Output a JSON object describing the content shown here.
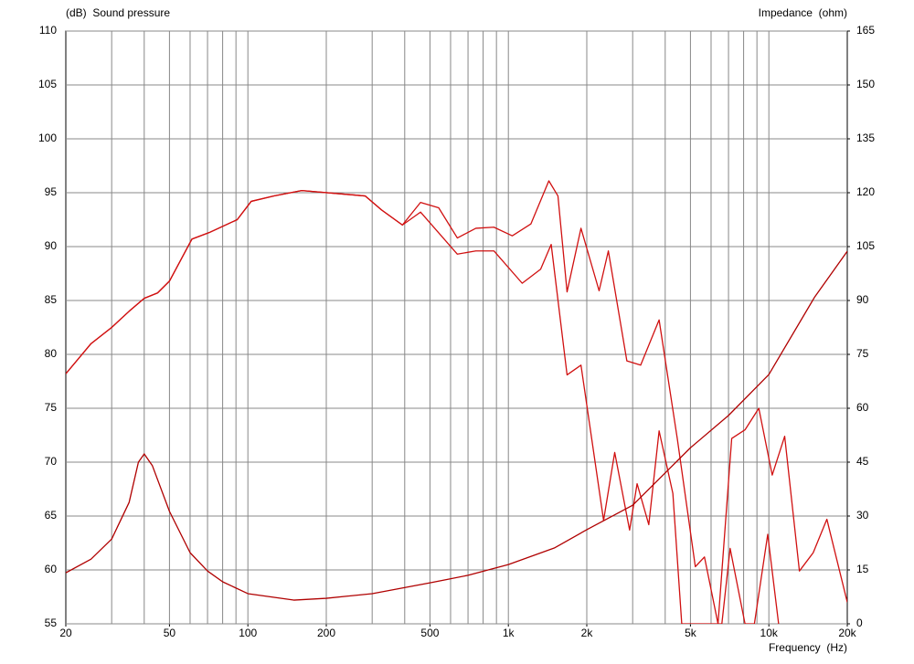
{
  "chart_data": {
    "type": "line",
    "ylabel": "(dB)  Sound pressure",
    "y2label": "Impedance  (ohm)",
    "xlabel": "Frequency  (Hz)",
    "xscale": "log",
    "xlim": [
      20,
      20000
    ],
    "xticks": [
      20,
      50,
      100,
      200,
      500,
      {
        "value": 1000,
        "label": "1k"
      },
      {
        "value": 2000,
        "label": "2k"
      },
      {
        "value": 5000,
        "label": "5k"
      },
      {
        "value": 10000,
        "label": "10k"
      },
      {
        "value": 20000,
        "label": "20k"
      }
    ],
    "xgrid": [
      30,
      40,
      50,
      60,
      70,
      80,
      90,
      100,
      200,
      300,
      400,
      500,
      600,
      700,
      800,
      900,
      1000,
      2000,
      3000,
      4000,
      5000,
      6000,
      7000,
      8000,
      9000,
      10000
    ],
    "ylim": [
      55,
      110
    ],
    "yticks": [
      55,
      60,
      65,
      70,
      75,
      80,
      85,
      90,
      95,
      100,
      105,
      110
    ],
    "y2lim": [
      0,
      165
    ],
    "y2ticks": [
      0,
      15,
      30,
      45,
      60,
      75,
      90,
      105,
      120,
      135,
      150,
      165
    ],
    "grid": true,
    "series": [
      {
        "color": "#d01010",
        "x": [
          20,
          25,
          30,
          35,
          40,
          45,
          50,
          61,
          71,
          91,
          103,
          126,
          161,
          282,
          326,
          392,
          460,
          540,
          637,
          750,
          880,
          1035,
          1220,
          1430,
          1550,
          1680,
          1900,
          2230,
          2420,
          2850,
          3220,
          3790,
          4450,
          5220,
          5660,
          6380,
          7200,
          8100,
          9150,
          10300,
          11500,
          13100,
          14800,
          16700,
          20000
        ],
        "values": [
          78.2,
          81,
          82.5,
          84,
          85.2,
          85.7,
          86.8,
          90.7,
          91.3,
          92.5,
          94.2,
          94.7,
          95.2,
          94.7,
          93.4,
          92,
          94.1,
          93.6,
          90.8,
          91.7,
          91.8,
          91,
          92.1,
          96.1,
          94.7,
          85.8,
          91.7,
          85.9,
          89.6,
          79.4,
          79,
          83.2,
          72.2,
          60.3,
          61.2,
          55,
          72.2,
          73,
          75,
          68.8,
          72.4,
          59.9,
          61.6,
          64.7,
          57
        ]
      },
      {
        "color": "#d01010",
        "x": [
          20,
          25,
          30,
          35,
          40,
          45,
          50,
          61,
          71,
          91,
          103,
          126,
          161,
          282,
          326,
          392,
          460,
          637,
          750,
          880,
          1130,
          1330,
          1460,
          1680,
          1900,
          2320,
          2560,
          2920,
          3120,
          3460,
          3790,
          4280,
          4630,
          6600,
          7100,
          8100,
          8800,
          9900,
          10900
        ],
        "values": [
          78.2,
          81,
          82.5,
          84,
          85.2,
          85.7,
          86.8,
          90.7,
          91.3,
          92.5,
          94.2,
          94.7,
          95.2,
          94.7,
          93.4,
          92,
          93.2,
          89.3,
          89.6,
          89.6,
          86.6,
          87.9,
          90.2,
          78.1,
          79,
          64.6,
          70.9,
          63.7,
          68,
          64.2,
          72.9,
          67.1,
          55,
          55,
          62,
          55,
          55,
          63.3,
          55
        ]
      },
      {
        "color": "#b00000",
        "axis": "y2",
        "x": [
          20,
          25,
          30,
          35,
          38,
          40,
          43,
          50,
          60,
          70,
          80,
          100,
          150,
          200,
          300,
          500,
          700,
          1000,
          1500,
          2000,
          3000,
          5000,
          7000,
          10000,
          15000,
          20000
        ],
        "values": [
          14.2,
          18,
          23.6,
          33.8,
          45,
          47.3,
          44,
          31.3,
          19.8,
          14.7,
          11.7,
          8.4,
          6.6,
          7.1,
          8.4,
          11.4,
          13.5,
          16.5,
          21.1,
          26.2,
          33,
          49,
          58,
          69.4,
          91,
          103.7
        ]
      }
    ]
  }
}
